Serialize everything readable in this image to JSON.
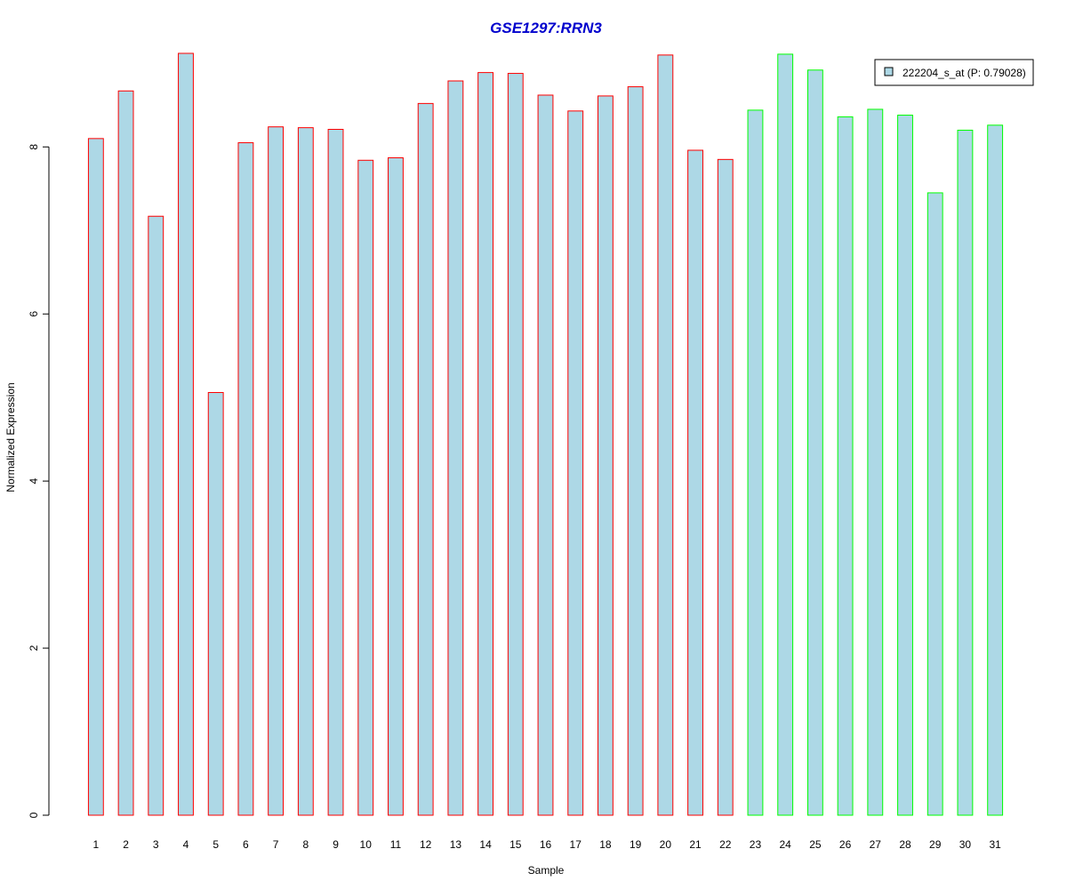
{
  "chart_data": {
    "type": "bar",
    "title": "GSE1297:RRN3",
    "xlabel": "Sample",
    "ylabel": "Normalized Expression",
    "categories": [
      "1",
      "2",
      "3",
      "4",
      "5",
      "6",
      "7",
      "8",
      "9",
      "10",
      "11",
      "12",
      "13",
      "14",
      "15",
      "16",
      "17",
      "18",
      "19",
      "20",
      "21",
      "22",
      "23",
      "24",
      "25",
      "26",
      "27",
      "28",
      "29",
      "30",
      "31"
    ],
    "series": [
      {
        "name": "222204_s_at (P: 0.79028)",
        "values": [
          8.1,
          8.67,
          7.17,
          9.12,
          5.06,
          8.05,
          8.24,
          8.23,
          8.21,
          7.84,
          7.87,
          8.52,
          8.79,
          8.89,
          8.88,
          8.62,
          8.43,
          8.61,
          8.72,
          9.1,
          7.96,
          7.85,
          8.44,
          9.11,
          8.92,
          8.36,
          8.45,
          8.38,
          7.45,
          8.2,
          8.26
        ]
      }
    ],
    "group_index": [
      1,
      1,
      1,
      1,
      1,
      1,
      1,
      1,
      1,
      1,
      1,
      1,
      1,
      1,
      1,
      1,
      1,
      1,
      1,
      1,
      1,
      1,
      2,
      2,
      2,
      2,
      2,
      2,
      2,
      2,
      2
    ],
    "yticks": [
      0,
      2,
      4,
      6,
      8
    ],
    "ylim": [
      0,
      9.12
    ],
    "grid": false,
    "legend_position": "top-right",
    "colors": {
      "bar_fill": "#add8e6",
      "group1_border": "#ff0000",
      "group2_border": "#00ff00",
      "title": "#0000cd",
      "axis": "#000000"
    }
  }
}
